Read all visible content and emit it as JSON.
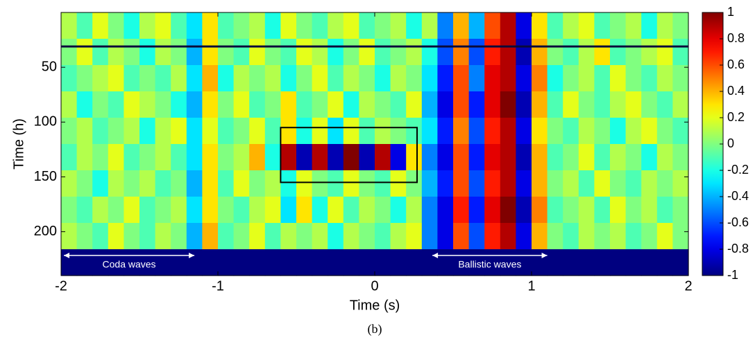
{
  "chart_data": {
    "type": "heatmap",
    "xlabel": "Time (s)",
    "ylabel": "Time (h)",
    "caption": "(b)",
    "xlim": [
      -2,
      2
    ],
    "ylim": [
      0,
      240
    ],
    "xticks": [
      -2,
      -1,
      0,
      1,
      2
    ],
    "yticks": [
      50,
      100,
      150,
      200
    ],
    "colormap": "jet",
    "colorbar": {
      "lim": [
        -1,
        1
      ],
      "ticks": [
        1,
        0.8,
        0.6,
        0.4,
        0.2,
        0,
        -0.2,
        -0.4,
        -0.6,
        -0.8,
        -1
      ]
    },
    "hline": 31,
    "box": {
      "xlim": [
        -0.6,
        0.27
      ],
      "ylim": [
        105,
        155
      ]
    },
    "annotations": [
      {
        "text": "Coda waves",
        "x": [
          -2,
          -1.15
        ],
        "y": 228
      },
      {
        "text": "Ballistic waves",
        "x": [
          0.35,
          1.1
        ],
        "y": 228
      }
    ],
    "z": [
      [
        0.1,
        -0.1,
        0.2,
        0,
        -0.2,
        0.1,
        0.2,
        -0.1,
        -0.3,
        0.3,
        -0.1,
        0,
        0.1,
        -0.2,
        0.2,
        0,
        -0.1,
        0.1,
        0.2,
        -0.1,
        0,
        0.1,
        -0.2,
        0.1,
        -0.5,
        0.4,
        -0.4,
        0.6,
        0.9,
        -0.8,
        0.3,
        -0.1,
        0.1,
        0.2,
        -0.1,
        0,
        0.1,
        -0.2,
        0.1,
        0
      ],
      [
        0,
        0.2,
        -0.1,
        0.1,
        0,
        -0.2,
        0.1,
        0,
        -0.4,
        0.3,
        0,
        -0.1,
        0.2,
        0,
        -0.1,
        0.2,
        0.1,
        -0.2,
        0,
        0.2,
        -0.1,
        0,
        0.1,
        -0.2,
        -0.6,
        0.5,
        -0.6,
        0.7,
        0.9,
        -0.9,
        0.4,
        0,
        -0.1,
        0.1,
        0.3,
        -0.1,
        0,
        0.1,
        0.2,
        -0.1
      ],
      [
        -0.1,
        0,
        0.1,
        0.2,
        -0.1,
        0,
        -0.1,
        0.1,
        -0.3,
        0.4,
        -0.2,
        0.1,
        0,
        0.1,
        -0.2,
        0,
        0.2,
        -0.1,
        0.1,
        0,
        -0.2,
        0.1,
        0,
        -0.3,
        -0.7,
        0.6,
        -0.5,
        0.8,
        0.9,
        -0.8,
        0.5,
        -0.2,
        0,
        0.1,
        -0.1,
        0.2,
        0,
        -0.1,
        0.1,
        0
      ],
      [
        0.1,
        -0.2,
        0,
        -0.1,
        0.2,
        0.1,
        0,
        -0.2,
        -0.4,
        0.3,
        0,
        0.2,
        -0.1,
        0,
        0.3,
        -0.1,
        0,
        0.2,
        -0.2,
        0.1,
        0,
        -0.1,
        0.2,
        -0.4,
        -0.8,
        0.6,
        -0.7,
        0.8,
        1,
        -0.9,
        0.4,
        -0.1,
        0.2,
        0,
        -0.1,
        0.1,
        0.2,
        0,
        -0.1,
        0.1
      ],
      [
        0,
        0.1,
        -0.1,
        0,
        0.1,
        -0.2,
        0.1,
        0.2,
        -0.3,
        0.2,
        -0.1,
        0,
        0.2,
        -0.1,
        0.3,
        -0.2,
        0.2,
        -0.3,
        0.2,
        -0.1,
        0.1,
        0,
        -0.1,
        -0.3,
        -0.7,
        0.5,
        -0.6,
        0.7,
        0.9,
        -0.8,
        0.3,
        0,
        -0.1,
        0.1,
        0,
        -0.2,
        0.1,
        0.2,
        0,
        -0.1
      ],
      [
        -0.1,
        0.1,
        0,
        0.2,
        -0.1,
        0,
        0.1,
        -0.1,
        -0.3,
        0.3,
        0,
        0.1,
        0.4,
        -0.2,
        0.9,
        -0.9,
        0.9,
        -0.9,
        1,
        -0.9,
        0.9,
        -0.8,
        0.3,
        -0.5,
        -0.8,
        0.6,
        -0.7,
        0.8,
        0.9,
        -0.9,
        0.4,
        -0.1,
        0,
        0.2,
        -0.1,
        0.1,
        0,
        -0.2,
        0.1,
        0
      ],
      [
        0.1,
        0,
        -0.2,
        0.1,
        0,
        0.1,
        -0.1,
        0,
        -0.4,
        0.3,
        -0.1,
        0.2,
        0,
        0.1,
        -0.2,
        0.2,
        0,
        -0.1,
        0.2,
        0,
        -0.1,
        0.2,
        0,
        -0.4,
        -0.7,
        0.6,
        -0.6,
        0.7,
        0.9,
        -0.8,
        0.4,
        0,
        0.1,
        -0.1,
        0.2,
        0,
        -0.1,
        0.1,
        0,
        0.1
      ],
      [
        0,
        -0.1,
        0.1,
        0,
        0.2,
        -0.1,
        0,
        0.1,
        -0.3,
        0.3,
        0,
        -0.1,
        0.1,
        0.2,
        -0.3,
        0.3,
        -0.2,
        0.2,
        -0.1,
        0.1,
        0,
        -0.2,
        0.1,
        -0.5,
        -0.8,
        0.7,
        -0.7,
        0.8,
        1,
        -0.9,
        0.5,
        -0.1,
        0,
        0.1,
        -0.1,
        0.2,
        0,
        0.1,
        -0.1,
        0
      ],
      [
        0.1,
        0,
        -0.1,
        0.2,
        0,
        -0.1,
        0.1,
        0,
        -0.4,
        0.4,
        -0.1,
        0,
        0.2,
        -0.1,
        0.1,
        0,
        0.1,
        -0.2,
        0.1,
        0,
        -0.1,
        0.1,
        0.2,
        -0.5,
        -0.8,
        0.6,
        -0.6,
        0.7,
        0.9,
        -0.8,
        0.4,
        0,
        -0.1,
        0.1,
        0,
        0.1,
        -0.1,
        0,
        0.2,
        0
      ],
      [
        -1,
        -1,
        -1,
        -1,
        -1,
        -1,
        -1,
        -1,
        -1,
        -1,
        -1,
        -1,
        -1,
        -1,
        -1,
        -1,
        -1,
        -1,
        -1,
        -1,
        -1,
        -1,
        -1,
        -1,
        -1,
        -1,
        -1,
        -1,
        -1,
        -1,
        -1,
        -1,
        -1,
        -1,
        -1,
        -1,
        -1,
        -1,
        -1,
        -1
      ]
    ]
  }
}
